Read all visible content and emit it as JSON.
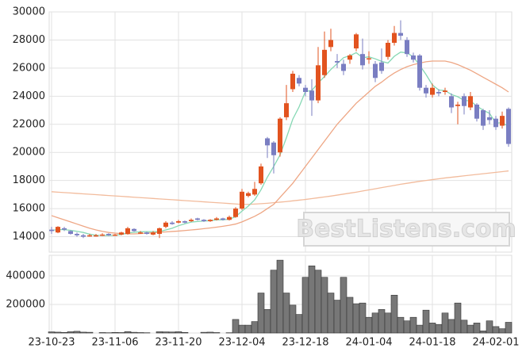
{
  "chart_data": {
    "type": "candlestick",
    "categories": [
      "23-10-23",
      null,
      null,
      null,
      null,
      null,
      null,
      null,
      null,
      null,
      "23-11-06",
      null,
      null,
      null,
      null,
      null,
      null,
      null,
      null,
      null,
      "23-11-20",
      null,
      null,
      null,
      null,
      null,
      null,
      null,
      null,
      null,
      "23-12-04",
      null,
      null,
      null,
      null,
      null,
      null,
      null,
      null,
      null,
      "23-12-18",
      null,
      null,
      null,
      null,
      null,
      null,
      null,
      null,
      null,
      "24-01-04",
      null,
      null,
      null,
      null,
      null,
      null,
      null,
      null,
      null,
      "24-01-18",
      null,
      null,
      null,
      null,
      null,
      null,
      null,
      null,
      null,
      "24-02-01",
      null,
      null
    ],
    "open": [
      14500,
      14300,
      14600,
      14400,
      14200,
      14100,
      14050,
      14100,
      14100,
      14200,
      14100,
      14150,
      14200,
      14550,
      14300,
      14300,
      14150,
      14200,
      14700,
      15000,
      15000,
      15100,
      15100,
      15300,
      15200,
      15100,
      15200,
      15300,
      15200,
      15400,
      16000,
      16900,
      17000,
      17800,
      21000,
      20700,
      20000,
      22500,
      24500,
      25300,
      24600,
      24400,
      23700,
      25500,
      27500,
      26500,
      26300,
      26600,
      27400,
      27000,
      26700,
      26300,
      26400,
      26800,
      27800,
      28500,
      28000,
      26900,
      26900,
      24600,
      24100,
      24300,
      24300,
      24000,
      23300,
      24000,
      23200,
      23400,
      23000,
      22500,
      22400,
      21900,
      23100
    ],
    "high": [
      14700,
      14750,
      14700,
      14450,
      14300,
      14200,
      14200,
      14200,
      14250,
      14250,
      14200,
      14350,
      14700,
      14600,
      14400,
      14350,
      14400,
      14650,
      15100,
      15100,
      15200,
      15150,
      15300,
      15350,
      15250,
      15250,
      15400,
      15350,
      15500,
      16100,
      17400,
      17200,
      17900,
      19200,
      21100,
      20800,
      22500,
      24800,
      25800,
      25500,
      24800,
      25200,
      27500,
      28600,
      28800,
      27000,
      26600,
      27000,
      28500,
      28100,
      27200,
      26500,
      27400,
      28000,
      29000,
      29400,
      28200,
      27100,
      27000,
      24800,
      24900,
      24500,
      24600,
      24200,
      23600,
      24200,
      24300,
      23500,
      23100,
      23000,
      22600,
      22900,
      23200
    ],
    "low": [
      14200,
      14250,
      14400,
      14150,
      14000,
      13900,
      14000,
      14000,
      14050,
      14050,
      14050,
      14100,
      14150,
      14350,
      14200,
      14150,
      14100,
      13900,
      14600,
      14850,
      14950,
      14950,
      15050,
      15150,
      15050,
      15050,
      15150,
      15150,
      15150,
      15350,
      15900,
      16800,
      16900,
      17700,
      19600,
      18500,
      19700,
      22300,
      24300,
      24700,
      24000,
      22600,
      23500,
      25300,
      27200,
      26000,
      25500,
      26300,
      27200,
      25900,
      26300,
      25000,
      25600,
      26600,
      27600,
      28000,
      26800,
      26400,
      24400,
      23900,
      23900,
      24000,
      24100,
      22800,
      22000,
      22700,
      23000,
      22200,
      21600,
      22000,
      21600,
      21700,
      20400
    ],
    "close": [
      14400,
      14700,
      14500,
      14200,
      14100,
      14000,
      14100,
      14100,
      14150,
      14100,
      14150,
      14300,
      14600,
      14400,
      14300,
      14200,
      14300,
      14600,
      15000,
      14900,
      15100,
      15000,
      15200,
      15200,
      15100,
      15200,
      15300,
      15200,
      15400,
      16000,
      17200,
      17100,
      17400,
      19000,
      20500,
      19800,
      22400,
      23500,
      25600,
      24900,
      24300,
      23700,
      26200,
      27300,
      28000,
      26400,
      25800,
      26900,
      28400,
      26200,
      26700,
      25300,
      25800,
      27800,
      28500,
      28300,
      27000,
      26600,
      24600,
      24200,
      24600,
      24200,
      24400,
      23200,
      23400,
      23300,
      24000,
      22400,
      21900,
      22300,
      21800,
      22600,
      20600
    ],
    "up_color": "#e2531f",
    "down_color": "#7a7ec2",
    "ylim": [
      12900,
      30000
    ],
    "yticks": [
      14000,
      16000,
      18000,
      20000,
      22000,
      24000,
      26000,
      28000,
      30000
    ],
    "grid": true,
    "lines": [
      {
        "color": "#86d8b4",
        "values": [
          14450,
          14500,
          14500,
          14450,
          14380,
          14300,
          14180,
          14100,
          14090,
          14090,
          14100,
          14160,
          14260,
          14310,
          14350,
          14360,
          14360,
          14360,
          14480,
          14600,
          14780,
          14920,
          15040,
          15080,
          15120,
          15140,
          15200,
          15200,
          15240,
          15420,
          15820,
          16180,
          16620,
          17340,
          18240,
          19000,
          19820,
          21040,
          22360,
          23240,
          24340,
          24400,
          24940,
          25400,
          25900,
          26320,
          26740,
          26880,
          27100,
          26740,
          26800,
          26660,
          26480,
          26360,
          26840,
          27140,
          27080,
          26800,
          26200,
          25540,
          24800,
          24440,
          24400,
          24120,
          23960,
          23700,
          23660,
          23300,
          23000,
          22780,
          22080,
          22120,
          21840
        ]
      },
      {
        "color": "#eea684",
        "values": [
          15500,
          15350,
          15200,
          15050,
          14900,
          14750,
          14600,
          14480,
          14380,
          14300,
          14250,
          14220,
          14200,
          14200,
          14220,
          14250,
          14280,
          14310,
          14340,
          14370,
          14400,
          14440,
          14480,
          14520,
          14570,
          14620,
          14680,
          14740,
          14810,
          14900,
          15050,
          15250,
          15450,
          15700,
          16000,
          16300,
          16800,
          17300,
          17800,
          18400,
          19000,
          19600,
          20200,
          20800,
          21400,
          22000,
          22500,
          23000,
          23500,
          23900,
          24300,
          24700,
          25000,
          25350,
          25650,
          25900,
          26100,
          26250,
          26350,
          26450,
          26500,
          26500,
          26500,
          26400,
          26250,
          26050,
          25850,
          25600,
          25350,
          25100,
          24850,
          24600,
          24300
        ]
      },
      {
        "color": "#f2bb9c",
        "values": [
          17200,
          17170,
          17140,
          17110,
          17080,
          17050,
          17020,
          16990,
          16960,
          16930,
          16900,
          16870,
          16840,
          16810,
          16780,
          16750,
          16720,
          16690,
          16660,
          16630,
          16600,
          16570,
          16540,
          16510,
          16480,
          16450,
          16420,
          16390,
          16360,
          16330,
          16300,
          16300,
          16320,
          16350,
          16380,
          16420,
          16460,
          16500,
          16550,
          16600,
          16650,
          16710,
          16770,
          16830,
          16890,
          16960,
          17030,
          17100,
          17170,
          17250,
          17330,
          17410,
          17490,
          17570,
          17650,
          17730,
          17800,
          17870,
          17940,
          18000,
          18060,
          18120,
          18180,
          18230,
          18280,
          18330,
          18380,
          18430,
          18480,
          18530,
          18580,
          18630,
          18680
        ]
      }
    ],
    "volume": {
      "color": "#777777",
      "values": [
        8000,
        6000,
        4000,
        9000,
        12000,
        6000,
        5000,
        0,
        3000,
        2000,
        4000,
        3000,
        10000,
        5000,
        3000,
        2000,
        0,
        9000,
        8000,
        7000,
        9000,
        4000,
        0,
        0,
        5000,
        6000,
        3000,
        0,
        2000,
        95000,
        55000,
        55000,
        80000,
        280000,
        165000,
        440000,
        510000,
        280000,
        195000,
        130000,
        390000,
        470000,
        440000,
        390000,
        280000,
        230000,
        390000,
        250000,
        205000,
        210000,
        110000,
        140000,
        165000,
        140000,
        265000,
        110000,
        85000,
        110000,
        55000,
        160000,
        70000,
        60000,
        140000,
        95000,
        210000,
        90000,
        55000,
        70000,
        15000,
        85000,
        45000,
        30000,
        75000
      ],
      "ylim": [
        0,
        544000
      ],
      "yticks": [
        200000,
        400000
      ]
    },
    "watermark": "BestListens.com"
  }
}
